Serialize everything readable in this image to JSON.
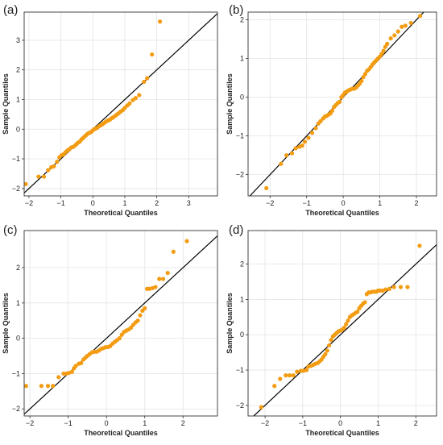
{
  "figure": {
    "background": "#ffffff",
    "marker_color": "#f39c12",
    "line_color": "#000000"
  },
  "chart_data": [
    {
      "type": "scatter",
      "panel": "(a)",
      "xlabel": "Theoretical Quantiles",
      "ylabel": "Sample Quantiles",
      "xlim": [
        -2.15,
        3.9
      ],
      "ylim": [
        -2.25,
        3.95
      ],
      "xticks": [
        -2,
        -1,
        0,
        1,
        2,
        3
      ],
      "yticks": [
        -2,
        -1,
        0,
        1,
        2,
        3
      ],
      "grid": true,
      "reference_line": "y = x",
      "x": [
        -2.1,
        -1.7,
        -1.53,
        -1.4,
        -1.3,
        -1.22,
        -1.12,
        -1.05,
        -0.98,
        -0.92,
        -0.86,
        -0.8,
        -0.74,
        -0.68,
        -0.62,
        -0.56,
        -0.51,
        -0.46,
        -0.41,
        -0.36,
        -0.31,
        -0.26,
        -0.21,
        -0.16,
        -0.11,
        -0.06,
        -0.01,
        0.04,
        0.09,
        0.14,
        0.19,
        0.24,
        0.29,
        0.34,
        0.39,
        0.44,
        0.49,
        0.54,
        0.59,
        0.64,
        0.7,
        0.76,
        0.82,
        0.88,
        0.94,
        1.0,
        1.08,
        1.15,
        1.25,
        1.34,
        1.45,
        1.6,
        1.7,
        1.85,
        2.1
      ],
      "y": [
        -1.85,
        -1.6,
        -1.6,
        -1.38,
        -1.28,
        -1.25,
        -1.1,
        -0.95,
        -0.88,
        -0.85,
        -0.78,
        -0.72,
        -0.68,
        -0.62,
        -0.6,
        -0.55,
        -0.5,
        -0.45,
        -0.42,
        -0.35,
        -0.3,
        -0.25,
        -0.2,
        -0.15,
        -0.12,
        -0.1,
        -0.05,
        0.0,
        0.02,
        0.05,
        0.1,
        0.13,
        0.16,
        0.2,
        0.24,
        0.28,
        0.3,
        0.33,
        0.37,
        0.4,
        0.45,
        0.5,
        0.55,
        0.6,
        0.65,
        0.72,
        0.8,
        0.87,
        0.98,
        1.05,
        1.15,
        1.6,
        1.72,
        2.52,
        3.63
      ]
    },
    {
      "type": "scatter",
      "panel": "(b)",
      "xlabel": "Theoretical Quantiles",
      "ylabel": "Sample Quantiles",
      "xlim": [
        -2.6,
        2.55
      ],
      "ylim": [
        -2.55,
        2.2
      ],
      "xticks": [
        -2,
        -1,
        0,
        1,
        2
      ],
      "yticks": [
        -2,
        -1,
        0,
        1,
        2
      ],
      "grid": true,
      "reference_line": "y = x",
      "x": [
        -2.1,
        -1.7,
        -1.55,
        -1.4,
        -1.3,
        -1.2,
        -1.12,
        -1.05,
        -0.95,
        -0.85,
        -0.75,
        -0.68,
        -0.62,
        -0.55,
        -0.5,
        -0.45,
        -0.4,
        -0.35,
        -0.3,
        -0.25,
        -0.2,
        -0.15,
        -0.1,
        -0.05,
        0.0,
        0.05,
        0.1,
        0.15,
        0.2,
        0.25,
        0.3,
        0.35,
        0.4,
        0.45,
        0.5,
        0.55,
        0.6,
        0.65,
        0.7,
        0.75,
        0.8,
        0.85,
        0.9,
        0.95,
        1.0,
        1.05,
        1.1,
        1.15,
        1.2,
        1.3,
        1.4,
        1.5,
        1.6,
        1.7,
        1.85,
        2.1
      ],
      "y": [
        -2.35,
        -1.72,
        -1.5,
        -1.45,
        -1.32,
        -1.28,
        -1.25,
        -1.15,
        -1.05,
        -0.92,
        -0.8,
        -0.68,
        -0.62,
        -0.55,
        -0.5,
        -0.48,
        -0.45,
        -0.42,
        -0.35,
        -0.25,
        -0.2,
        -0.15,
        -0.12,
        0.0,
        0.06,
        0.12,
        0.15,
        0.18,
        0.2,
        0.22,
        0.22,
        0.25,
        0.3,
        0.35,
        0.42,
        0.52,
        0.6,
        0.68,
        0.72,
        0.78,
        0.85,
        0.9,
        0.95,
        1.0,
        1.05,
        1.12,
        1.2,
        1.3,
        1.38,
        1.52,
        1.6,
        1.7,
        1.82,
        1.85,
        1.92,
        2.1
      ]
    },
    {
      "type": "scatter",
      "panel": "(c)",
      "xlabel": "Theoretical Quantiles",
      "ylabel": "Sample Quantiles",
      "xlim": [
        -2.15,
        2.9
      ],
      "ylim": [
        -2.2,
        3.05
      ],
      "xticks": [
        -2,
        -1,
        0,
        1,
        2
      ],
      "yticks": [
        -2,
        -1,
        0,
        1,
        2
      ],
      "grid": true,
      "reference_line": "y = x",
      "x": [
        -2.1,
        -1.7,
        -1.53,
        -1.4,
        -1.25,
        -1.12,
        -1.05,
        -0.98,
        -0.9,
        -0.85,
        -0.8,
        -0.72,
        -0.66,
        -0.6,
        -0.55,
        -0.5,
        -0.44,
        -0.38,
        -0.32,
        -0.26,
        -0.2,
        -0.14,
        -0.08,
        -0.02,
        0.04,
        0.1,
        0.16,
        0.22,
        0.28,
        0.34,
        0.4,
        0.46,
        0.52,
        0.58,
        0.64,
        0.7,
        0.76,
        0.82,
        0.88,
        0.94,
        1.0,
        1.06,
        1.12,
        1.2,
        1.28,
        1.38,
        1.48,
        1.6,
        1.75,
        2.1
      ],
      "y": [
        -1.35,
        -1.35,
        -1.35,
        -1.35,
        -1.1,
        -1.0,
        -1.0,
        -0.98,
        -0.95,
        -0.85,
        -0.78,
        -0.72,
        -0.7,
        -0.6,
        -0.55,
        -0.5,
        -0.45,
        -0.4,
        -0.38,
        -0.38,
        -0.35,
        -0.3,
        -0.28,
        -0.25,
        -0.25,
        -0.22,
        -0.15,
        -0.1,
        -0.05,
        0.0,
        0.1,
        0.18,
        0.22,
        0.25,
        0.3,
        0.38,
        0.45,
        0.5,
        0.65,
        0.78,
        0.85,
        1.4,
        1.4,
        1.42,
        1.45,
        1.68,
        1.68,
        1.85,
        2.45,
        2.75
      ]
    },
    {
      "type": "scatter",
      "panel": "(d)",
      "xlabel": "Theoretical Quantiles",
      "ylabel": "Sample Quantiles",
      "xlim": [
        -2.45,
        2.55
      ],
      "ylim": [
        -2.3,
        2.95
      ],
      "xticks": [
        -2,
        -1,
        0,
        1,
        2
      ],
      "yticks": [
        -2,
        -1,
        0,
        1,
        2
      ],
      "grid": true,
      "reference_line": "y = x",
      "x": [
        -2.1,
        -1.75,
        -1.6,
        -1.45,
        -1.35,
        -1.25,
        -1.15,
        -1.05,
        -0.98,
        -0.9,
        -0.85,
        -0.78,
        -0.72,
        -0.66,
        -0.6,
        -0.55,
        -0.5,
        -0.45,
        -0.4,
        -0.35,
        -0.3,
        -0.25,
        -0.2,
        -0.15,
        -0.1,
        -0.05,
        0.0,
        0.05,
        0.1,
        0.15,
        0.2,
        0.25,
        0.3,
        0.35,
        0.4,
        0.45,
        0.5,
        0.55,
        0.6,
        0.65,
        0.7,
        0.75,
        0.8,
        0.85,
        0.9,
        0.95,
        1.0,
        1.05,
        1.12,
        1.2,
        1.3,
        1.42,
        1.6,
        1.78,
        2.1
      ],
      "y": [
        -2.05,
        -1.45,
        -1.25,
        -1.15,
        -1.15,
        -1.15,
        -1.05,
        -1.02,
        -1.02,
        -1.0,
        -0.9,
        -0.88,
        -0.85,
        -0.82,
        -0.8,
        -0.75,
        -0.7,
        -0.62,
        -0.55,
        -0.45,
        -0.3,
        -0.15,
        -0.05,
        0.0,
        0.05,
        0.1,
        0.12,
        0.15,
        0.2,
        0.3,
        0.4,
        0.5,
        0.55,
        0.58,
        0.62,
        0.65,
        0.75,
        0.82,
        0.88,
        0.92,
        1.15,
        1.2,
        1.2,
        1.22,
        1.22,
        1.22,
        1.25,
        1.25,
        1.25,
        1.28,
        1.3,
        1.35,
        1.35,
        1.35,
        2.52
      ]
    }
  ]
}
